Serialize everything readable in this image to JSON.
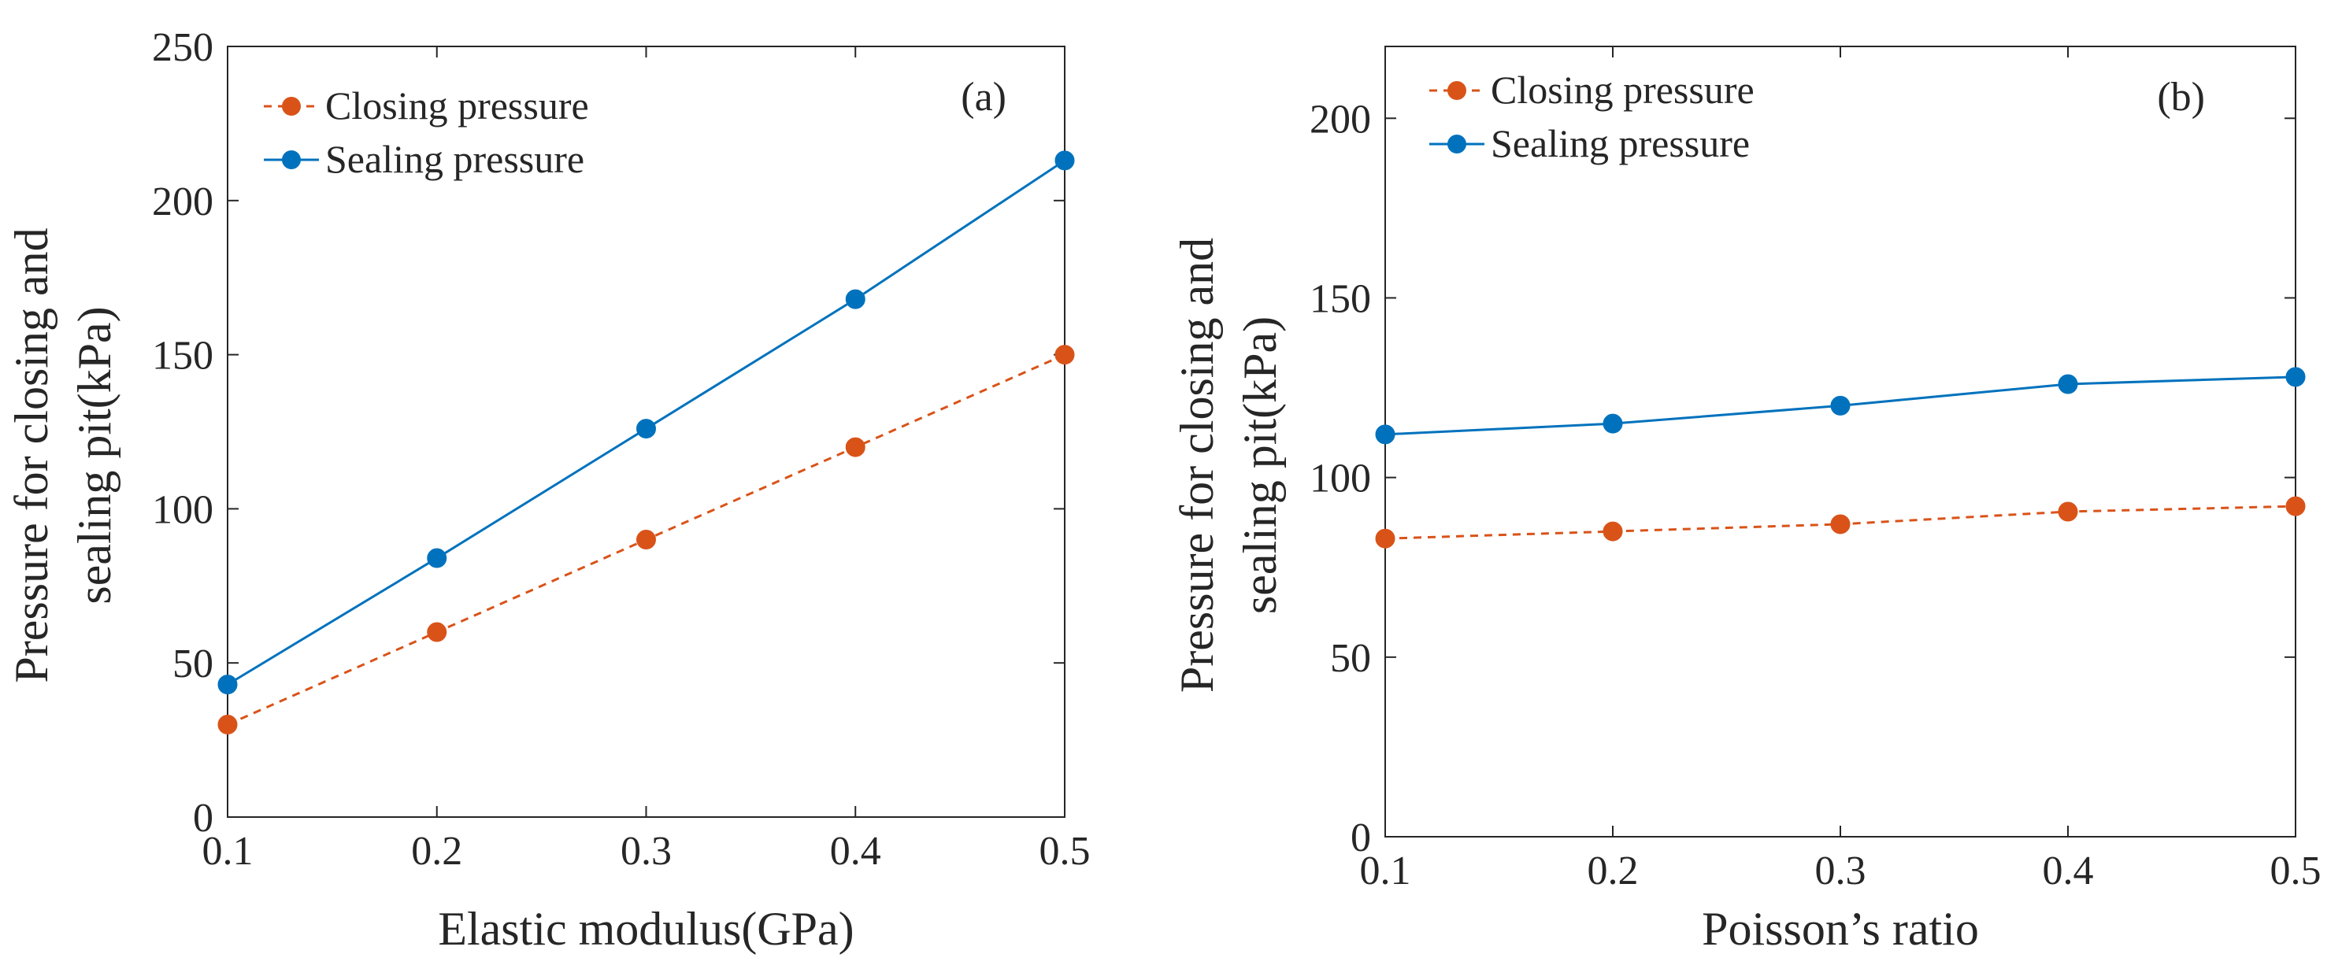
{
  "chart_data": [
    {
      "type": "line",
      "panel_label": "(a)",
      "title": "",
      "xlabel": "Elastic modulus(GPa)",
      "ylabel_lines": [
        "Pressure for closing and",
        "sealing pit(kPa)"
      ],
      "xlim": [
        0.1,
        0.5
      ],
      "ylim": [
        0,
        250
      ],
      "x_ticks": [
        "0.1",
        "0.2",
        "0.3",
        "0.4",
        "0.5"
      ],
      "y_ticks": [
        "0",
        "50",
        "100",
        "150",
        "200",
        "250"
      ],
      "x": [
        0.1,
        0.2,
        0.3,
        0.4,
        0.5
      ],
      "legend_position": "top-left",
      "grid": false,
      "series": [
        {
          "name": "Closing pressure",
          "color": "#D95319",
          "line_style": "dashed",
          "values": [
            30,
            60,
            90,
            120,
            150
          ]
        },
        {
          "name": "Sealing pressure",
          "color": "#0072BD",
          "line_style": "solid",
          "values": [
            43,
            84,
            126,
            168,
            213
          ]
        }
      ]
    },
    {
      "type": "line",
      "panel_label": "(b)",
      "title": "",
      "xlabel": "Poisson’s ratio",
      "ylabel_lines": [
        "Pressure for closing and",
        "sealing pit(kPa)"
      ],
      "xlim": [
        0.1,
        0.5
      ],
      "ylim": [
        0,
        220
      ],
      "x_ticks": [
        "0.1",
        "0.2",
        "0.3",
        "0.4",
        "0.5"
      ],
      "y_ticks": [
        "0",
        "50",
        "100",
        "150",
        "200"
      ],
      "x": [
        0.1,
        0.2,
        0.3,
        0.4,
        0.5
      ],
      "legend_position": "top-left",
      "grid": false,
      "series": [
        {
          "name": "Closing pressure",
          "color": "#D95319",
          "line_style": "dashed",
          "values": [
            83,
            85,
            87,
            90.5,
            92
          ]
        },
        {
          "name": "Sealing pressure",
          "color": "#0072BD",
          "line_style": "solid",
          "values": [
            112,
            115,
            120,
            126,
            128
          ]
        }
      ]
    }
  ]
}
